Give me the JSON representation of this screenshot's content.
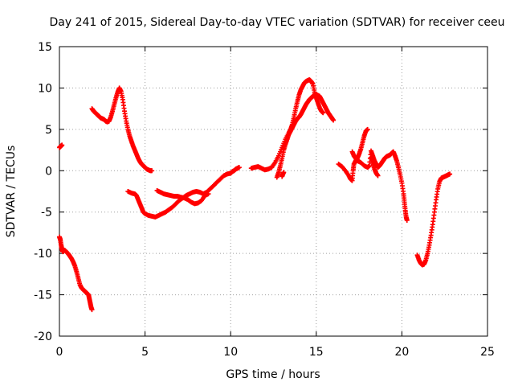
{
  "chart_data": {
    "type": "scatter",
    "title": "Day 241 of 2015, Sidereal Day-to-day VTEC variation (SDTVAR) for receiver ceeu",
    "xlabel": "GPS time / hours",
    "ylabel": "SDTVAR / TECUs",
    "xlim": [
      0,
      25
    ],
    "ylim": [
      -20,
      15
    ],
    "x_ticks": [
      0,
      5,
      10,
      15,
      20,
      25
    ],
    "y_ticks": [
      -20,
      -15,
      -10,
      -5,
      0,
      5,
      10,
      15
    ],
    "x_tick_labels": [
      "0",
      "5",
      "10",
      "15",
      "20",
      "25"
    ],
    "y_tick_labels": [
      "-20",
      "-15",
      "-10",
      "-5",
      "0",
      "5",
      "10",
      "15"
    ],
    "grid": true,
    "marker": "+",
    "color": "#ff0000",
    "segments": [
      {
        "name": "segment-1",
        "points": [
          [
            0.0,
            2.8
          ],
          [
            0.05,
            2.9
          ],
          [
            0.1,
            3.0
          ],
          [
            0.15,
            3.1
          ]
        ]
      },
      {
        "name": "segment-2",
        "points": [
          [
            0.0,
            -8.0
          ],
          [
            0.05,
            -8.3
          ],
          [
            0.1,
            -9.0
          ],
          [
            0.15,
            -9.5
          ],
          [
            0.2,
            -9.8
          ],
          [
            0.3,
            -9.6
          ],
          [
            0.4,
            -9.8
          ],
          [
            0.5,
            -10.0
          ],
          [
            0.6,
            -10.3
          ],
          [
            0.7,
            -10.6
          ],
          [
            0.8,
            -11.0
          ],
          [
            0.9,
            -11.5
          ],
          [
            1.0,
            -12.2
          ],
          [
            1.1,
            -13.0
          ],
          [
            1.2,
            -13.8
          ],
          [
            1.3,
            -14.2
          ],
          [
            1.4,
            -14.4
          ],
          [
            1.5,
            -14.6
          ],
          [
            1.6,
            -14.8
          ],
          [
            1.7,
            -15.0
          ],
          [
            1.75,
            -15.5
          ],
          [
            1.8,
            -16.0
          ],
          [
            1.85,
            -16.5
          ],
          [
            1.9,
            -16.8
          ]
        ]
      },
      {
        "name": "segment-3",
        "points": [
          [
            1.9,
            7.5
          ],
          [
            2.0,
            7.2
          ],
          [
            2.1,
            7.0
          ],
          [
            2.2,
            6.8
          ],
          [
            2.3,
            6.6
          ],
          [
            2.4,
            6.4
          ],
          [
            2.5,
            6.3
          ],
          [
            2.6,
            6.2
          ],
          [
            2.7,
            6.0
          ],
          [
            2.8,
            5.9
          ],
          [
            2.9,
            6.0
          ],
          [
            3.0,
            6.5
          ],
          [
            3.1,
            7.2
          ],
          [
            3.2,
            8.0
          ],
          [
            3.3,
            8.8
          ],
          [
            3.4,
            9.5
          ],
          [
            3.5,
            10.0
          ],
          [
            3.6,
            9.6
          ],
          [
            3.7,
            8.6
          ],
          [
            3.8,
            7.2
          ],
          [
            3.9,
            6.0
          ],
          [
            4.0,
            5.0
          ],
          [
            4.1,
            4.2
          ],
          [
            4.2,
            3.6
          ],
          [
            4.3,
            3.0
          ],
          [
            4.4,
            2.5
          ],
          [
            4.5,
            2.0
          ],
          [
            4.6,
            1.5
          ],
          [
            4.7,
            1.1
          ],
          [
            4.8,
            0.8
          ],
          [
            4.9,
            0.6
          ],
          [
            5.0,
            0.4
          ],
          [
            5.1,
            0.2
          ],
          [
            5.2,
            0.1
          ],
          [
            5.3,
            0.0
          ],
          [
            5.4,
            0.0
          ]
        ]
      },
      {
        "name": "segment-4",
        "points": [
          [
            4.0,
            -2.5
          ],
          [
            4.2,
            -2.7
          ],
          [
            4.4,
            -2.8
          ],
          [
            4.5,
            -3.0
          ],
          [
            4.6,
            -3.5
          ],
          [
            4.7,
            -4.0
          ],
          [
            4.8,
            -4.5
          ],
          [
            4.9,
            -5.0
          ],
          [
            5.0,
            -5.2
          ],
          [
            5.2,
            -5.4
          ],
          [
            5.4,
            -5.5
          ],
          [
            5.6,
            -5.6
          ],
          [
            5.8,
            -5.4
          ],
          [
            6.0,
            -5.2
          ],
          [
            6.2,
            -5.0
          ],
          [
            6.4,
            -4.7
          ],
          [
            6.6,
            -4.4
          ],
          [
            6.8,
            -4.0
          ],
          [
            7.0,
            -3.6
          ],
          [
            7.2,
            -3.3
          ],
          [
            7.4,
            -3.0
          ],
          [
            7.6,
            -2.8
          ],
          [
            7.8,
            -2.6
          ],
          [
            8.0,
            -2.5
          ],
          [
            8.2,
            -2.6
          ],
          [
            8.4,
            -2.8
          ],
          [
            8.6,
            -2.6
          ],
          [
            8.8,
            -2.2
          ],
          [
            9.0,
            -1.8
          ],
          [
            9.2,
            -1.4
          ],
          [
            9.4,
            -1.0
          ],
          [
            9.6,
            -0.6
          ],
          [
            9.8,
            -0.4
          ],
          [
            10.0,
            -0.3
          ],
          [
            10.1,
            -0.1
          ],
          [
            10.2,
            0.0
          ],
          [
            10.3,
            0.2
          ],
          [
            10.4,
            0.3
          ],
          [
            10.5,
            0.4
          ]
        ]
      },
      {
        "name": "segment-5",
        "points": [
          [
            5.7,
            -2.4
          ],
          [
            5.9,
            -2.6
          ],
          [
            6.1,
            -2.8
          ],
          [
            6.3,
            -2.9
          ],
          [
            6.5,
            -3.0
          ],
          [
            6.7,
            -3.1
          ],
          [
            6.9,
            -3.1
          ],
          [
            7.1,
            -3.2
          ],
          [
            7.3,
            -3.3
          ],
          [
            7.5,
            -3.5
          ],
          [
            7.7,
            -3.8
          ],
          [
            7.9,
            -4.0
          ],
          [
            8.1,
            -3.9
          ],
          [
            8.3,
            -3.6
          ],
          [
            8.5,
            -3.0
          ],
          [
            8.7,
            -2.8
          ]
        ]
      },
      {
        "name": "segment-6",
        "points": [
          [
            11.2,
            0.3
          ],
          [
            11.4,
            0.4
          ],
          [
            11.6,
            0.5
          ],
          [
            11.8,
            0.3
          ],
          [
            12.0,
            0.1
          ],
          [
            12.2,
            0.2
          ],
          [
            12.4,
            0.4
          ],
          [
            12.6,
            1.0
          ],
          [
            12.8,
            1.8
          ],
          [
            13.0,
            2.8
          ],
          [
            13.2,
            3.8
          ],
          [
            13.4,
            4.6
          ],
          [
            13.5,
            5.0
          ],
          [
            13.6,
            5.6
          ],
          [
            13.7,
            6.5
          ],
          [
            13.8,
            7.5
          ],
          [
            13.9,
            8.4
          ],
          [
            14.0,
            9.2
          ],
          [
            14.1,
            9.8
          ],
          [
            14.2,
            10.2
          ],
          [
            14.3,
            10.6
          ],
          [
            14.4,
            10.8
          ],
          [
            14.5,
            10.9
          ],
          [
            14.6,
            11.0
          ],
          [
            14.7,
            10.8
          ],
          [
            14.8,
            10.5
          ],
          [
            14.9,
            9.5
          ],
          [
            15.0,
            8.8
          ],
          [
            15.1,
            8.2
          ],
          [
            15.2,
            7.6
          ],
          [
            15.3,
            7.2
          ],
          [
            15.4,
            7.0
          ]
        ]
      },
      {
        "name": "segment-7",
        "points": [
          [
            12.7,
            -0.8
          ],
          [
            12.8,
            -0.2
          ],
          [
            12.9,
            0.6
          ],
          [
            13.0,
            1.5
          ],
          [
            13.1,
            2.5
          ],
          [
            13.2,
            3.2
          ],
          [
            13.3,
            3.8
          ],
          [
            13.4,
            4.4
          ],
          [
            13.5,
            4.8
          ],
          [
            13.6,
            5.2
          ],
          [
            13.7,
            5.6
          ],
          [
            13.8,
            6.0
          ],
          [
            13.9,
            6.3
          ],
          [
            14.0,
            6.5
          ],
          [
            14.1,
            6.8
          ],
          [
            14.2,
            7.2
          ],
          [
            14.3,
            7.6
          ],
          [
            14.4,
            8.0
          ],
          [
            14.5,
            8.3
          ],
          [
            14.6,
            8.6
          ],
          [
            14.7,
            8.8
          ],
          [
            14.8,
            9.0
          ],
          [
            14.9,
            9.1
          ],
          [
            15.0,
            9.2
          ],
          [
            15.1,
            9.1
          ],
          [
            15.2,
            9.0
          ],
          [
            15.3,
            8.6
          ],
          [
            15.4,
            8.2
          ],
          [
            15.5,
            7.8
          ],
          [
            15.6,
            7.4
          ],
          [
            15.7,
            7.0
          ],
          [
            15.8,
            6.7
          ],
          [
            15.9,
            6.4
          ],
          [
            16.0,
            6.1
          ]
        ]
      },
      {
        "name": "segment-8",
        "points": [
          [
            13.0,
            -0.7
          ],
          [
            13.05,
            -0.4
          ],
          [
            13.1,
            -0.2
          ]
        ]
      },
      {
        "name": "segment-9",
        "points": [
          [
            16.3,
            0.8
          ],
          [
            16.5,
            0.5
          ],
          [
            16.7,
            0.0
          ],
          [
            16.9,
            -0.6
          ],
          [
            17.0,
            -1.0
          ],
          [
            17.1,
            -1.2
          ],
          [
            17.15,
            0.0
          ],
          [
            17.2,
            0.8
          ],
          [
            17.3,
            1.2
          ],
          [
            17.4,
            1.5
          ],
          [
            17.5,
            2.0
          ],
          [
            17.6,
            2.6
          ],
          [
            17.7,
            3.4
          ],
          [
            17.8,
            4.2
          ],
          [
            17.9,
            4.8
          ],
          [
            18.0,
            5.0
          ]
        ]
      },
      {
        "name": "segment-10",
        "points": [
          [
            17.1,
            2.3
          ],
          [
            17.2,
            1.8
          ],
          [
            17.3,
            1.5
          ],
          [
            17.4,
            1.2
          ],
          [
            17.6,
            1.0
          ],
          [
            17.8,
            0.6
          ],
          [
            18.0,
            0.4
          ],
          [
            18.1,
            0.6
          ],
          [
            18.2,
            2.4
          ],
          [
            18.3,
            1.8
          ],
          [
            18.4,
            1.2
          ],
          [
            18.5,
            0.8
          ],
          [
            18.6,
            0.4
          ],
          [
            18.7,
            0.6
          ],
          [
            18.8,
            0.9
          ],
          [
            18.9,
            1.2
          ],
          [
            19.0,
            1.5
          ],
          [
            19.1,
            1.7
          ],
          [
            19.2,
            1.8
          ],
          [
            19.3,
            1.9
          ],
          [
            19.4,
            2.1
          ],
          [
            19.5,
            2.3
          ],
          [
            19.6,
            1.8
          ],
          [
            19.7,
            1.2
          ],
          [
            19.8,
            0.4
          ],
          [
            19.9,
            -0.5
          ],
          [
            20.0,
            -1.5
          ],
          [
            20.1,
            -2.8
          ],
          [
            20.15,
            -3.8
          ],
          [
            20.2,
            -4.8
          ],
          [
            20.25,
            -5.6
          ],
          [
            20.3,
            -6.0
          ]
        ]
      },
      {
        "name": "segment-11",
        "points": [
          [
            18.2,
            1.6
          ],
          [
            18.3,
            0.9
          ],
          [
            18.4,
            0.2
          ],
          [
            18.5,
            -0.3
          ],
          [
            18.6,
            -0.6
          ]
        ]
      },
      {
        "name": "segment-12",
        "points": [
          [
            20.9,
            -10.2
          ],
          [
            21.0,
            -10.8
          ],
          [
            21.1,
            -11.2
          ],
          [
            21.2,
            -11.4
          ],
          [
            21.3,
            -11.3
          ],
          [
            21.4,
            -10.8
          ],
          [
            21.5,
            -10.0
          ],
          [
            21.6,
            -9.0
          ],
          [
            21.7,
            -7.8
          ],
          [
            21.8,
            -6.5
          ],
          [
            21.9,
            -5.0
          ],
          [
            22.0,
            -3.5
          ],
          [
            22.1,
            -2.2
          ],
          [
            22.2,
            -1.3
          ],
          [
            22.3,
            -0.9
          ],
          [
            22.4,
            -0.8
          ],
          [
            22.5,
            -0.7
          ],
          [
            22.6,
            -0.6
          ],
          [
            22.7,
            -0.5
          ],
          [
            22.8,
            -0.4
          ]
        ]
      }
    ]
  }
}
